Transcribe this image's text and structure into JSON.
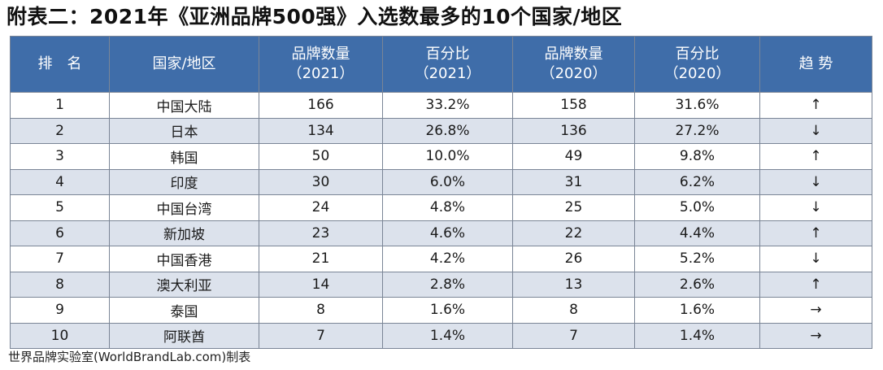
{
  "title": "附表二：2021年《亚洲品牌500强》入选数最多的10个国家/地区",
  "headers": [
    {
      "line1": "排　名",
      "line2": ""
    },
    {
      "line1": "国家/地区",
      "line2": ""
    },
    {
      "line1": "品牌数量",
      "line2": "（2021）"
    },
    {
      "line1": "百分比",
      "line2": "（2021）"
    },
    {
      "line1": "品牌数量",
      "line2": "（2020）"
    },
    {
      "line1": "百分比",
      "line2": "（2020）"
    },
    {
      "line1": "趋 势",
      "line2": ""
    }
  ],
  "rows": [
    {
      "rank": "1",
      "region": "中国大陆",
      "count2021": "166",
      "pct2021": "33.2%",
      "count2020": "158",
      "pct2020": "31.6%",
      "trend": "↑"
    },
    {
      "rank": "2",
      "region": "日本",
      "count2021": "134",
      "pct2021": "26.8%",
      "count2020": "136",
      "pct2020": "27.2%",
      "trend": "↓"
    },
    {
      "rank": "3",
      "region": "韩国",
      "count2021": "50",
      "pct2021": "10.0%",
      "count2020": "49",
      "pct2020": "9.8%",
      "trend": "↑"
    },
    {
      "rank": "4",
      "region": "印度",
      "count2021": "30",
      "pct2021": "6.0%",
      "count2020": "31",
      "pct2020": "6.2%",
      "trend": "↓"
    },
    {
      "rank": "5",
      "region": "中国台湾",
      "count2021": "24",
      "pct2021": "4.8%",
      "count2020": "25",
      "pct2020": "5.0%",
      "trend": "↓"
    },
    {
      "rank": "6",
      "region": "新加坡",
      "count2021": "23",
      "pct2021": "4.6%",
      "count2020": "22",
      "pct2020": "4.4%",
      "trend": "↑"
    },
    {
      "rank": "7",
      "region": "中国香港",
      "count2021": "21",
      "pct2021": "4.2%",
      "count2020": "26",
      "pct2020": "5.2%",
      "trend": "↓"
    },
    {
      "rank": "8",
      "region": "澳大利亚",
      "count2021": "14",
      "pct2021": "2.8%",
      "count2020": "13",
      "pct2020": "2.6%",
      "trend": "↑"
    },
    {
      "rank": "9",
      "region": "泰国",
      "count2021": "8",
      "pct2021": "1.6%",
      "count2020": "8",
      "pct2020": "1.6%",
      "trend": "→"
    },
    {
      "rank": "10",
      "region": "阿联酋",
      "count2021": "7",
      "pct2021": "1.4%",
      "count2020": "7",
      "pct2020": "1.4%",
      "trend": "→"
    }
  ],
  "footer": "世界品牌实验室(WorldBrandLab.com)制表",
  "colors": {
    "header_bg": "#3f6da9",
    "stripe_bg": "#dce2ec",
    "border": "#7a8596"
  }
}
